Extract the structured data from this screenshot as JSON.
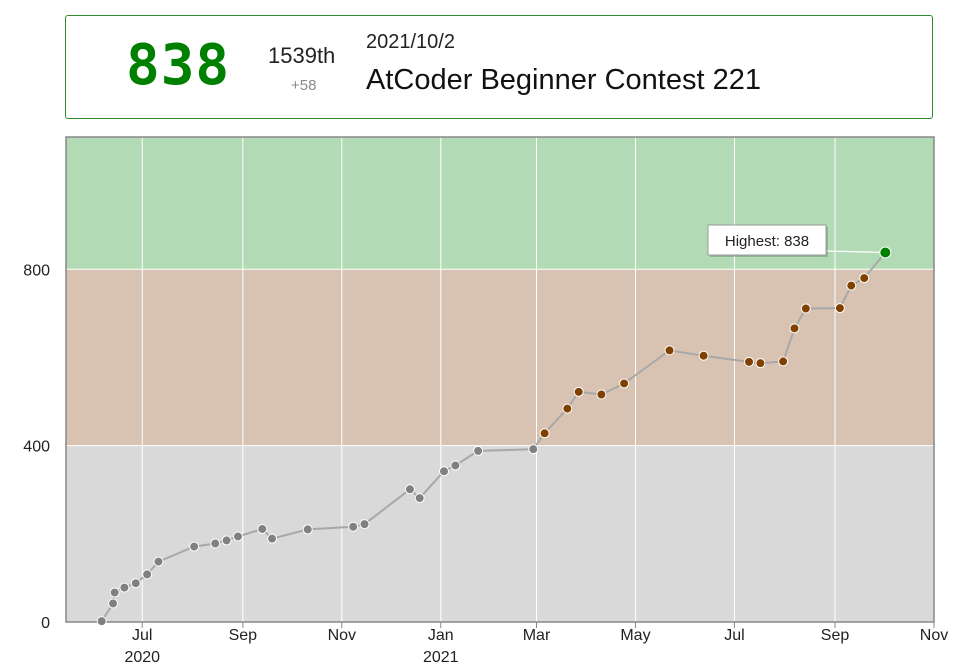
{
  "summary": {
    "rating": "838",
    "rank": "1539th",
    "delta": "+58",
    "date": "2021/10/2",
    "contest": "AtCoder Beginner Contest 221"
  },
  "colors": {
    "rating_text": "#008000",
    "band_green": "#b2dab4",
    "band_brown": "#d8c3b2",
    "band_gray": "#d9d9d9",
    "point_gray": "#808080",
    "point_brown": "#804000",
    "point_green": "#008000",
    "line": "#a8a8a8"
  },
  "chart_data": {
    "type": "line",
    "title": "",
    "xlabel": "",
    "ylabel": "",
    "xlim": [
      "2020-05-15",
      "2021-11-01"
    ],
    "ylim": [
      0,
      1100
    ],
    "bands": [
      {
        "from": 0,
        "to": 400,
        "color": "#d9d9d9"
      },
      {
        "from": 400,
        "to": 800,
        "color": "#d8c3b2"
      },
      {
        "from": 800,
        "to": 1100,
        "color": "#b2dab4"
      }
    ],
    "yticks": [
      0,
      400,
      800
    ],
    "xticks": [
      {
        "date": "2020-07-01",
        "label": "Jul",
        "year": "2020"
      },
      {
        "date": "2020-09-01",
        "label": "Sep",
        "year": ""
      },
      {
        "date": "2020-11-01",
        "label": "Nov",
        "year": ""
      },
      {
        "date": "2021-01-01",
        "label": "Jan",
        "year": "2021"
      },
      {
        "date": "2021-03-01",
        "label": "Mar",
        "year": ""
      },
      {
        "date": "2021-05-01",
        "label": "May",
        "year": ""
      },
      {
        "date": "2021-07-01",
        "label": "Jul",
        "year": ""
      },
      {
        "date": "2021-09-01",
        "label": "Sep",
        "year": ""
      },
      {
        "date": "2021-11-01",
        "label": "Nov",
        "year": ""
      }
    ],
    "grid": true,
    "annotation": {
      "text": "Highest: 838",
      "date": "2021-10-02",
      "value": 838
    },
    "points": [
      {
        "date": "2020-06-06",
        "value": 2
      },
      {
        "date": "2020-06-13",
        "value": 42
      },
      {
        "date": "2020-06-14",
        "value": 67
      },
      {
        "date": "2020-06-20",
        "value": 78
      },
      {
        "date": "2020-06-27",
        "value": 88
      },
      {
        "date": "2020-07-04",
        "value": 108
      },
      {
        "date": "2020-07-11",
        "value": 137
      },
      {
        "date": "2020-08-02",
        "value": 171
      },
      {
        "date": "2020-08-15",
        "value": 178
      },
      {
        "date": "2020-08-22",
        "value": 185
      },
      {
        "date": "2020-08-29",
        "value": 194
      },
      {
        "date": "2020-09-13",
        "value": 211
      },
      {
        "date": "2020-09-19",
        "value": 189
      },
      {
        "date": "2020-10-11",
        "value": 210
      },
      {
        "date": "2020-11-08",
        "value": 216
      },
      {
        "date": "2020-11-15",
        "value": 222
      },
      {
        "date": "2020-12-13",
        "value": 301
      },
      {
        "date": "2020-12-19",
        "value": 281
      },
      {
        "date": "2021-01-03",
        "value": 342
      },
      {
        "date": "2021-01-10",
        "value": 355
      },
      {
        "date": "2021-01-24",
        "value": 388
      },
      {
        "date": "2021-02-27",
        "value": 392
      },
      {
        "date": "2021-03-06",
        "value": 428
      },
      {
        "date": "2021-03-20",
        "value": 484
      },
      {
        "date": "2021-03-27",
        "value": 522
      },
      {
        "date": "2021-04-10",
        "value": 516
      },
      {
        "date": "2021-04-24",
        "value": 541
      },
      {
        "date": "2021-05-22",
        "value": 616
      },
      {
        "date": "2021-06-12",
        "value": 604
      },
      {
        "date": "2021-07-10",
        "value": 590
      },
      {
        "date": "2021-07-17",
        "value": 587
      },
      {
        "date": "2021-07-31",
        "value": 591
      },
      {
        "date": "2021-08-07",
        "value": 666
      },
      {
        "date": "2021-08-14",
        "value": 711
      },
      {
        "date": "2021-09-04",
        "value": 712
      },
      {
        "date": "2021-09-11",
        "value": 763
      },
      {
        "date": "2021-09-19",
        "value": 780
      },
      {
        "date": "2021-10-02",
        "value": 838
      }
    ]
  }
}
